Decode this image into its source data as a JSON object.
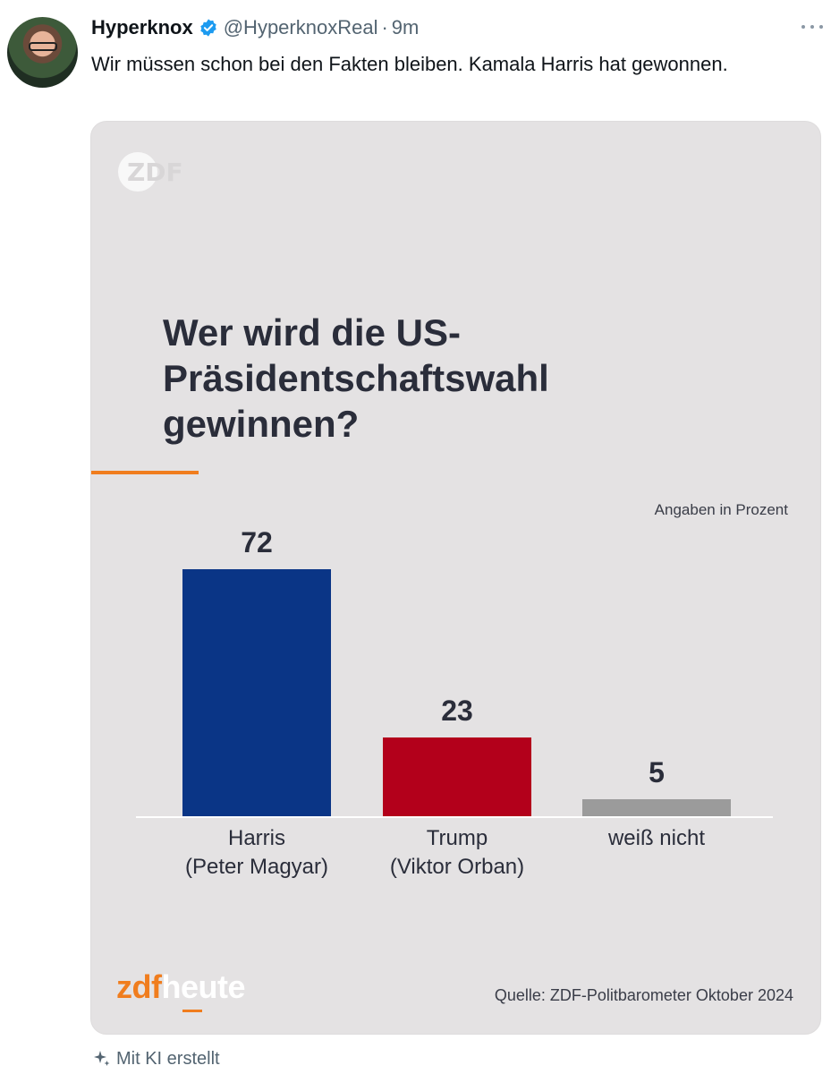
{
  "tweet": {
    "display_name": "Hyperknox",
    "handle": "@HyperknoxReal",
    "separator": "·",
    "time": "9m",
    "verified_color": "#1d9bf0",
    "text": "Wir müssen schon bei den Fakten bleiben. Kamala Harris hat gewonnen.",
    "ai_note": "Mit KI erstellt"
  },
  "media": {
    "unit_note": "Angaben in Prozent",
    "brand_zdf": "zdf",
    "brand_heute": "heute",
    "source": "Quelle: ZDF-Politbarometer Oktober 2024",
    "logo_text": "ZDF"
  },
  "chart_data": {
    "type": "bar",
    "title": "Wer wird die US-Präsidentschaftswahl gewinnen?",
    "unit": "Angaben in Prozent",
    "categories": [
      "Harris (Peter Magyar)",
      "Trump (Viktor Orban)",
      "weiß nicht"
    ],
    "category_lines": [
      [
        "Harris",
        "(Peter Magyar)"
      ],
      [
        "Trump",
        "(Viktor Orban)"
      ],
      [
        "weiß nicht"
      ]
    ],
    "values": [
      72,
      23,
      5
    ],
    "colors": [
      "#0a3586",
      "#b3001b",
      "#9b9b9b"
    ],
    "ylim": [
      0,
      72
    ],
    "grid": false,
    "legend": "none"
  }
}
